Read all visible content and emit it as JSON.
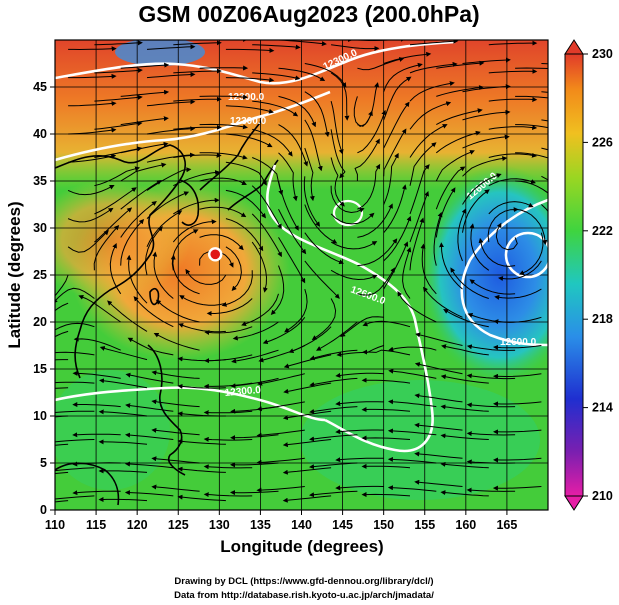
{
  "title": "GSM 00Z06Aug2023 (200.0hPa)",
  "xlabel": "Longitude (degrees)",
  "ylabel": "Latitude  (degrees)",
  "x_ticks": [
    "110",
    "115",
    "120",
    "125",
    "130",
    "135",
    "140",
    "145",
    "150",
    "155",
    "160",
    "165"
  ],
  "y_ticks": [
    "0",
    "5",
    "10",
    "15",
    "20",
    "25",
    "30",
    "35",
    "40",
    "45"
  ],
  "colorbar_ticks": [
    "230",
    "226",
    "222",
    "218",
    "214",
    "210"
  ],
  "contour_labels": [
    "12300.0",
    "12300.0",
    "12300.0",
    "12600.0",
    "12600.0",
    "12600.0",
    "12300.0"
  ],
  "credits": [
    "Drawing by DCL (https://www.gfd-dennou.org/library/dcl/)",
    "Data from http://database.rish.kyoto-u.ac.jp/arch/jmadata/"
  ],
  "chart_data": {
    "type": "heatmap",
    "xlim": [
      110,
      170
    ],
    "ylim": [
      0,
      50
    ],
    "colorbar_range": [
      210,
      230
    ],
    "colors": {
      "warm": "#e0502a",
      "mid": "#3ccf3c",
      "cool": "#2f7de6",
      "low": "#cc3399"
    },
    "grid": true,
    "marker_lon_lat": [
      129.5,
      27.2
    ]
  }
}
